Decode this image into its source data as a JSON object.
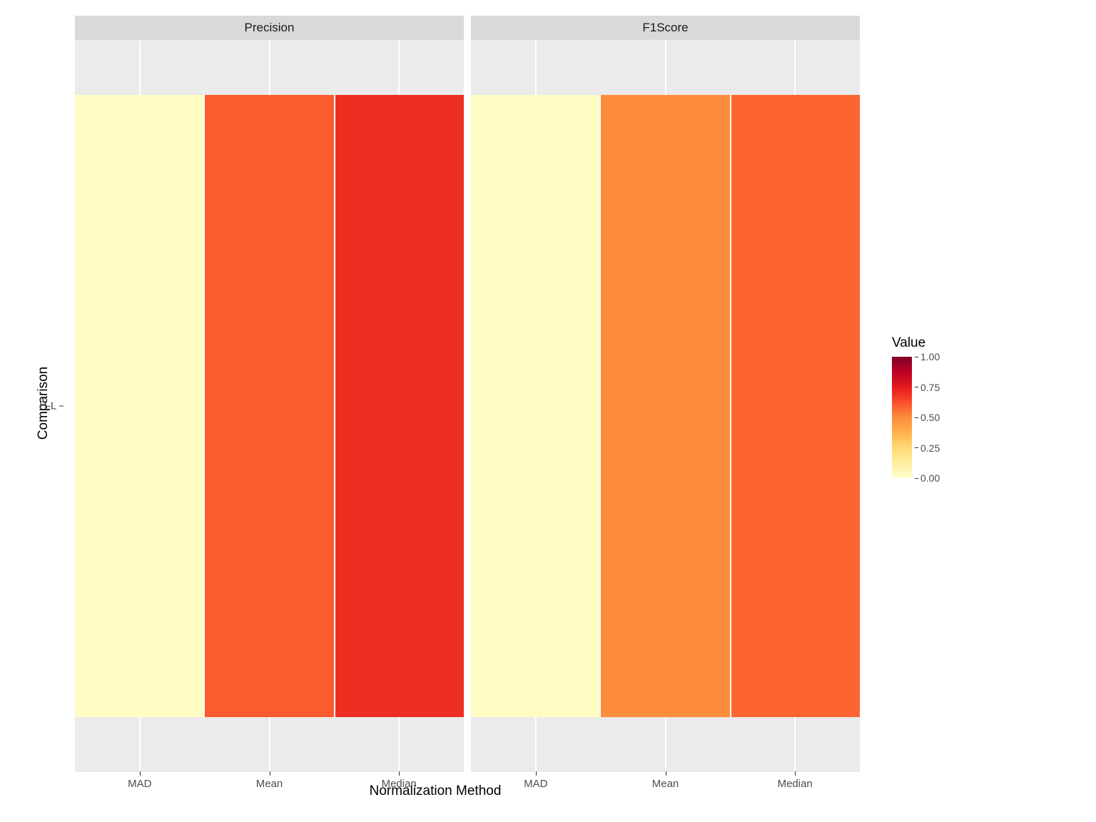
{
  "chart": {
    "type": "heatmap",
    "facet_layout": "horizontal",
    "x_axis_label": "Normalization Method",
    "y_axis_label": "Comparison",
    "x_categories": [
      "MAD",
      "Mean",
      "Median"
    ],
    "y_categories": [
      "H-L"
    ],
    "facets": [
      {
        "title": "Precision",
        "values": [
          [
            0.02,
            0.6,
            0.7
          ]
        ]
      },
      {
        "title": "F1Score",
        "values": [
          [
            0.02,
            0.5,
            0.58
          ]
        ]
      }
    ],
    "colorscale": {
      "title": "Value",
      "min": 0.0,
      "max": 1.0,
      "ticks": [
        0.0,
        0.25,
        0.5,
        0.75,
        1.0
      ],
      "tick_labels": [
        "0.00",
        "0.25",
        "0.50",
        "0.75",
        "1.00"
      ],
      "stops": [
        {
          "at": 0.0,
          "color": "#ffffcc"
        },
        {
          "at": 0.125,
          "color": "#ffeda0"
        },
        {
          "at": 0.25,
          "color": "#fed976"
        },
        {
          "at": 0.375,
          "color": "#feb24c"
        },
        {
          "at": 0.5,
          "color": "#fd8d3c"
        },
        {
          "at": 0.625,
          "color": "#fc4e2a"
        },
        {
          "at": 0.75,
          "color": "#e31a1c"
        },
        {
          "at": 0.875,
          "color": "#bd0026"
        },
        {
          "at": 1.0,
          "color": "#800026"
        }
      ]
    },
    "panel_background": "#ebebeb",
    "strip_background": "#d9d9d9",
    "grid_color": "#ffffff",
    "tick_label_color": "#4d4d4d",
    "axis_label_fontsize": 19,
    "tick_label_fontsize": 15,
    "strip_fontsize": 17,
    "legend_title_fontsize": 19,
    "legend_tick_fontsize": 14
  }
}
